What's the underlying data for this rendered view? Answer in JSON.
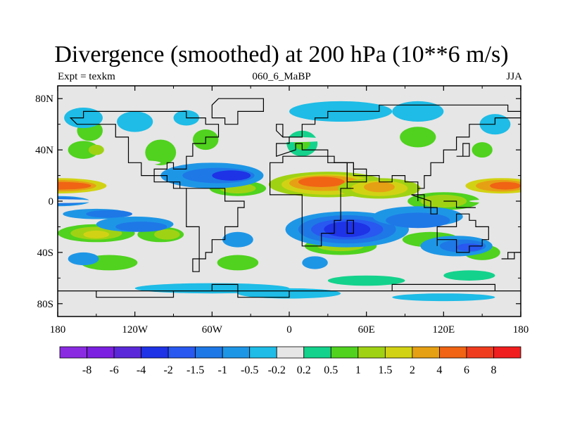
{
  "title": "Divergence (smoothed) at 200 hPa (10**6 m/s)",
  "subtitle_left": "Expt = texkm",
  "subtitle_center": "060_6_MaBP",
  "subtitle_right": "JJA",
  "lat_ticks": [
    "80N",
    "40N",
    "0",
    "40S",
    "80S"
  ],
  "lon_ticks": [
    "180",
    "120W",
    "60W",
    "0",
    "60E",
    "120E",
    "180"
  ],
  "colorbar": {
    "labels": [
      "-8",
      "-6",
      "-4",
      "-2",
      "-1.5",
      "-1",
      "-0.5",
      "-0.2",
      "0.2",
      "0.5",
      "1",
      "1.5",
      "2",
      "4",
      "6",
      "8"
    ],
    "colors": [
      "#8a2be2",
      "#7b1fe0",
      "#5a28d8",
      "#1e32e6",
      "#2858f0",
      "#1e78e6",
      "#1e96e6",
      "#1ebce6",
      "#e6e6e6",
      "#14d28c",
      "#50d21e",
      "#a0d214",
      "#d2d214",
      "#e6a014",
      "#f06414",
      "#f03c1e",
      "#f01e1e"
    ]
  },
  "map_colors": {
    "neutral": "#e6e6e6",
    "coast": "#000000"
  }
}
